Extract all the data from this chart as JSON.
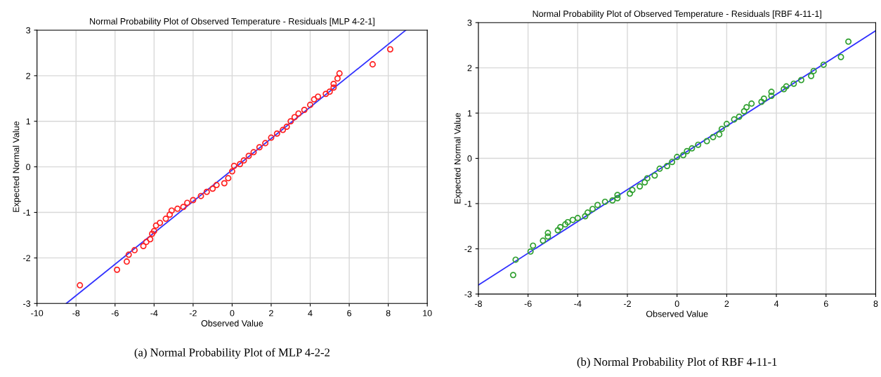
{
  "chart_data": [
    {
      "type": "scatter",
      "title": "Normal Probability Plot of Observed Temperature - Residuals [MLP 4-2-1]",
      "xlabel": "Observed Value",
      "ylabel": "Expected Normal Value",
      "xlim": [
        -10,
        10
      ],
      "ylim": [
        -3,
        3
      ],
      "xticks": [
        -10,
        -8,
        -6,
        -4,
        -2,
        0,
        2,
        4,
        6,
        8,
        10
      ],
      "yticks": [
        -3,
        -2,
        -1,
        0,
        1,
        2,
        3
      ],
      "grid": true,
      "annotations": [
        "(a) Normal Probability Plot of MLP 4-2-2"
      ],
      "series": [
        {
          "marker": "circle",
          "color": "#ff2020",
          "x": [
            -7.8,
            -5.9,
            -5.4,
            -5.3,
            -5.0,
            -4.55,
            -4.4,
            -4.2,
            -4.1,
            -4.0,
            -3.9,
            -3.7,
            -3.4,
            -3.2,
            -3.1,
            -2.8,
            -2.5,
            -2.3,
            -2.0,
            -1.6,
            -1.3,
            -1.0,
            -0.8,
            -0.4,
            -0.2,
            0.0,
            0.1,
            0.4,
            0.6,
            0.85,
            1.1,
            1.4,
            1.7,
            2.0,
            2.3,
            2.6,
            2.8,
            3.0,
            3.2,
            3.4,
            3.7,
            4.0,
            4.2,
            4.4,
            4.8,
            5.0,
            5.2,
            5.2,
            5.4,
            5.5,
            7.2,
            8.1
          ],
          "values": [
            -2.6,
            -2.26,
            -2.08,
            -1.93,
            -1.83,
            -1.74,
            -1.65,
            -1.59,
            -1.47,
            -1.41,
            -1.29,
            -1.23,
            -1.14,
            -1.05,
            -0.96,
            -0.92,
            -0.88,
            -0.79,
            -0.73,
            -0.64,
            -0.55,
            -0.48,
            -0.4,
            -0.36,
            -0.25,
            -0.1,
            0.02,
            0.06,
            0.14,
            0.24,
            0.32,
            0.43,
            0.52,
            0.64,
            0.73,
            0.81,
            0.88,
            1.0,
            1.09,
            1.17,
            1.25,
            1.36,
            1.48,
            1.54,
            1.6,
            1.65,
            1.74,
            1.82,
            1.94,
            2.05,
            2.25,
            2.58
          ]
        },
        {
          "type": "line",
          "color": "#3030ff",
          "x": [
            -8.5,
            8.9
          ],
          "values": [
            -3,
            3
          ]
        }
      ]
    },
    {
      "type": "scatter",
      "title": "Normal Probability Plot of Observed Temperature - Residuals [RBF 4-11-1]",
      "xlabel": "Observed Value",
      "ylabel": "Expected Normal Value",
      "xlim": [
        -8,
        8
      ],
      "ylim": [
        -3,
        3
      ],
      "xticks": [
        -8,
        -6,
        -4,
        -2,
        0,
        2,
        4,
        6,
        8
      ],
      "yticks": [
        -3,
        -2,
        -1,
        0,
        1,
        2,
        3
      ],
      "grid": true,
      "annotations": [
        "(b) Normal Probability Plot of RBF 4-11-1"
      ],
      "series": [
        {
          "marker": "circle",
          "color": "#30a030",
          "x": [
            -6.6,
            -6.5,
            -5.9,
            -5.8,
            -5.4,
            -5.2,
            -5.2,
            -4.8,
            -4.7,
            -4.5,
            -4.4,
            -4.2,
            -4.0,
            -3.7,
            -3.6,
            -3.4,
            -3.2,
            -2.9,
            -2.6,
            -2.4,
            -2.4,
            -1.9,
            -1.8,
            -1.5,
            -1.3,
            -1.2,
            -0.9,
            -0.7,
            -0.4,
            -0.2,
            0.0,
            0.25,
            0.4,
            0.6,
            0.85,
            1.2,
            1.45,
            1.7,
            1.8,
            2.0,
            2.3,
            2.5,
            2.7,
            2.8,
            3.0,
            3.4,
            3.5,
            3.8,
            3.8,
            4.3,
            4.4,
            4.7,
            5.0,
            5.4,
            5.5,
            5.9,
            6.6,
            6.9
          ],
          "values": [
            -2.58,
            -2.24,
            -2.06,
            -1.93,
            -1.82,
            -1.73,
            -1.65,
            -1.59,
            -1.52,
            -1.46,
            -1.41,
            -1.36,
            -1.32,
            -1.28,
            -1.2,
            -1.12,
            -1.03,
            -0.96,
            -0.93,
            -0.88,
            -0.81,
            -0.78,
            -0.7,
            -0.62,
            -0.53,
            -0.44,
            -0.38,
            -0.23,
            -0.17,
            -0.08,
            0.03,
            0.07,
            0.16,
            0.22,
            0.3,
            0.38,
            0.47,
            0.53,
            0.65,
            0.76,
            0.86,
            0.92,
            1.04,
            1.13,
            1.21,
            1.25,
            1.32,
            1.38,
            1.47,
            1.53,
            1.59,
            1.65,
            1.73,
            1.82,
            1.93,
            2.07,
            2.24,
            2.58
          ]
        },
        {
          "type": "line",
          "color": "#3030ff",
          "x": [
            -8,
            8
          ],
          "values": [
            -2.8,
            2.82
          ]
        }
      ]
    }
  ]
}
